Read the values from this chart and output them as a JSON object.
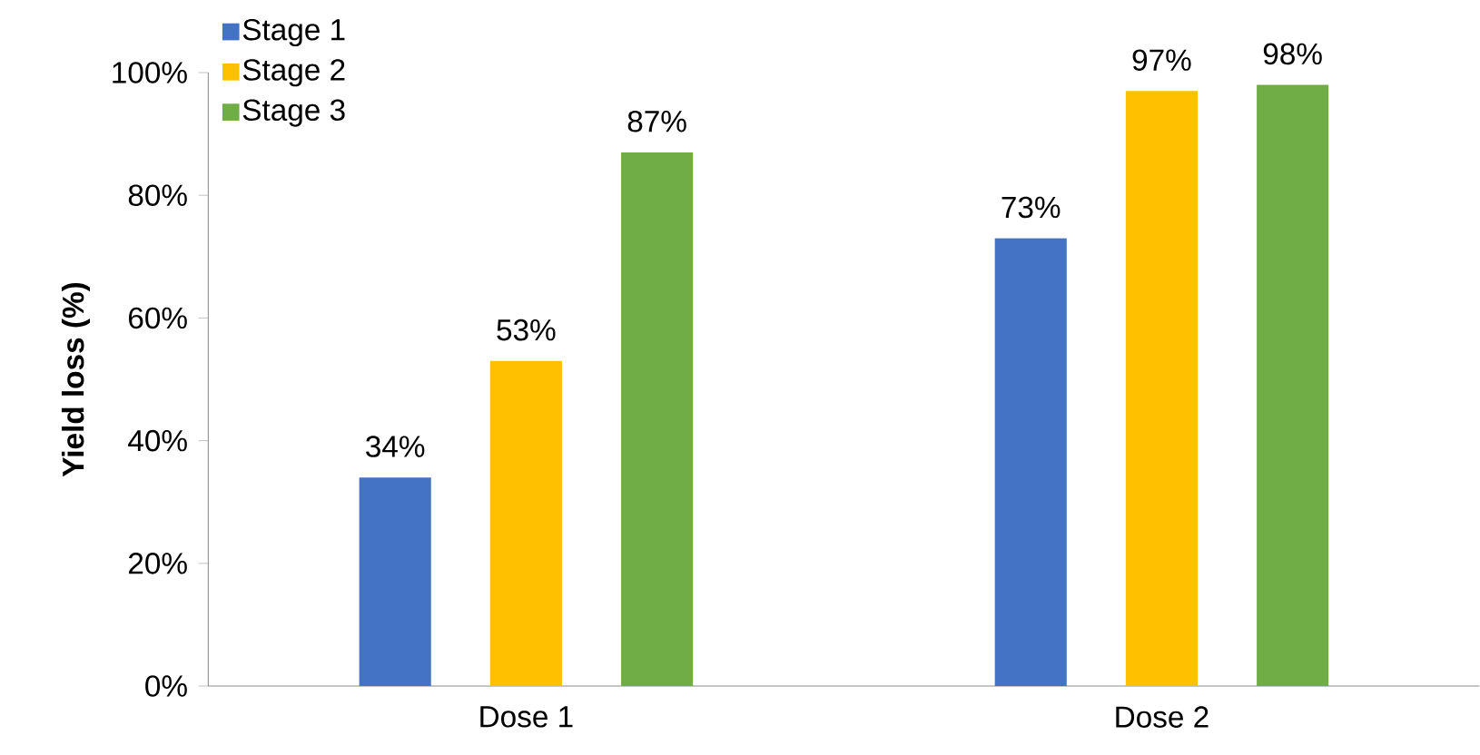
{
  "chart_data": {
    "type": "bar",
    "ylabel": "Yield loss (%)",
    "categories": [
      "Dose 1",
      "Dose 2"
    ],
    "series": [
      {
        "name": "Stage 1",
        "color": "#4472c4",
        "values": [
          34,
          73
        ],
        "value_labels": [
          "34%",
          "73%"
        ]
      },
      {
        "name": "Stage 2",
        "color": "#ffc000",
        "values": [
          53,
          97
        ],
        "value_labels": [
          "53%",
          "97%"
        ]
      },
      {
        "name": "Stage 3",
        "color": "#70ad47",
        "values": [
          87,
          98
        ],
        "value_labels": [
          "87%",
          "98%"
        ]
      }
    ],
    "ylim": [
      0,
      100
    ],
    "yticks": [
      {
        "value": 0,
        "label": "0%"
      },
      {
        "value": 20,
        "label": "20%"
      },
      {
        "value": 40,
        "label": "40%"
      },
      {
        "value": 60,
        "label": "60%"
      },
      {
        "value": 80,
        "label": "80%"
      },
      {
        "value": 100,
        "label": "100%"
      }
    ],
    "legend": "top left"
  }
}
